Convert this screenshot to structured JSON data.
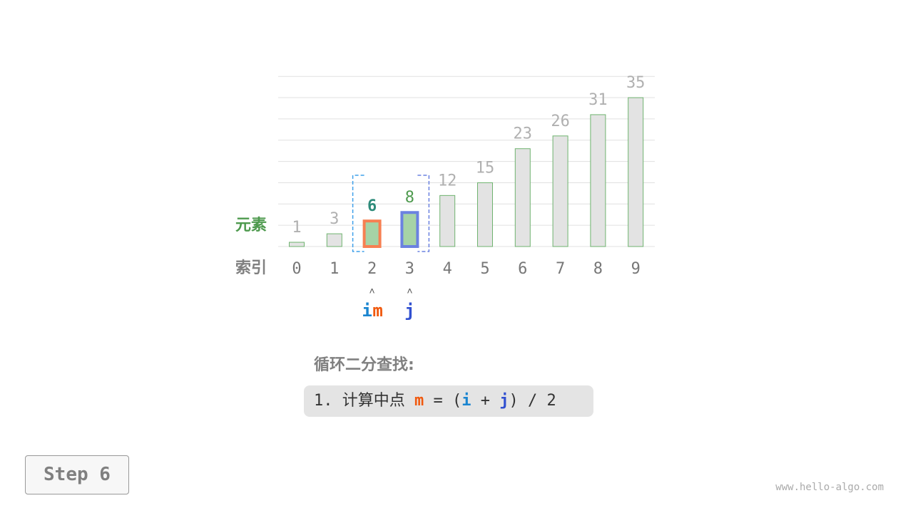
{
  "array": [
    1,
    3,
    6,
    8,
    12,
    15,
    23,
    26,
    31,
    35
  ],
  "indices": [
    "0",
    "1",
    "2",
    "3",
    "4",
    "5",
    "6",
    "7",
    "8",
    "9"
  ],
  "row_labels": {
    "elements": "元素",
    "index": "索引"
  },
  "pointers": {
    "i": {
      "label": "i",
      "index": 2
    },
    "m": {
      "label": "m",
      "index": 2
    },
    "j": {
      "label": "j",
      "index": 3
    }
  },
  "pointer_arrow": "˄",
  "search_range": [
    2,
    3
  ],
  "title": "循环二分查找:",
  "formula": {
    "prefix": "1. 计算中点 ",
    "m": "m",
    "eq": " = (",
    "i": "i",
    "plus": " + ",
    "j": "j",
    "suffix": ") / 2"
  },
  "step_label": "Step 6",
  "watermark": "www.hello-algo.com",
  "colors": {
    "bar_fill": "#e3e3e3",
    "bar_stroke": "#6fb36f",
    "active_fill": "#a6d3a6",
    "m_stroke": "#f78052",
    "j_stroke": "#6b82e0",
    "i_color": "#1a85d0",
    "m_color": "#f0590e",
    "j_color": "#3150d0",
    "range_i": "#3fa0ea",
    "range_j": "#6b82e0",
    "label_green": "#4e9a4e",
    "value_gray": "#b0b0b0"
  }
}
